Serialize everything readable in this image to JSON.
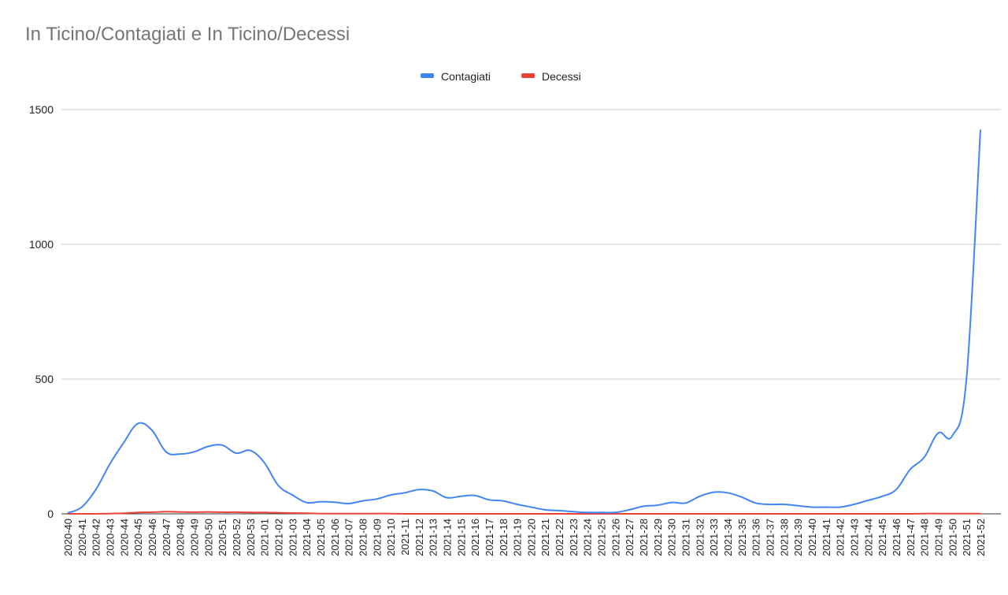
{
  "chart_data": {
    "type": "line",
    "title": "In Ticino/Contagiati e In Ticino/Decessi",
    "xlabel": "",
    "ylabel": "",
    "ylim": [
      0,
      1500
    ],
    "yticks": [
      0,
      500,
      1000,
      1500
    ],
    "legend_position": "top-center",
    "grid": true,
    "categories": [
      "2020-40",
      "2020-41",
      "2020-42",
      "2020-43",
      "2020-44",
      "2020-45",
      "2020-46",
      "2020-47",
      "2020-48",
      "2020-49",
      "2020-50",
      "2020-51",
      "2020-52",
      "2020-53",
      "2021-01",
      "2021-02",
      "2021-03",
      "2021-04",
      "2021-05",
      "2021-06",
      "2021-07",
      "2021-08",
      "2021-09",
      "2021-10",
      "2021-11",
      "2021-12",
      "2021-13",
      "2021-14",
      "2021-15",
      "2021-16",
      "2021-17",
      "2021-18",
      "2021-19",
      "2021-20",
      "2021-21",
      "2021-22",
      "2021-23",
      "2021-24",
      "2021-25",
      "2021-26",
      "2021-27",
      "2021-28",
      "2021-29",
      "2021-30",
      "2021-31",
      "2021-32",
      "2021-33",
      "2021-34",
      "2021-35",
      "2021-36",
      "2021-37",
      "2021-38",
      "2021-39",
      "2021-40",
      "2021-41",
      "2021-42",
      "2021-43",
      "2021-44",
      "2021-45",
      "2021-46",
      "2021-47",
      "2021-48",
      "2021-49",
      "2021-50",
      "2021-51",
      "2021-52"
    ],
    "series": [
      {
        "name": "Contagiati",
        "color": "#4285f4",
        "values": [
          3,
          25,
          90,
          185,
          265,
          335,
          310,
          230,
          222,
          230,
          250,
          255,
          225,
          235,
          190,
          105,
          70,
          42,
          45,
          43,
          38,
          48,
          55,
          70,
          78,
          90,
          85,
          60,
          65,
          68,
          52,
          48,
          35,
          25,
          15,
          12,
          8,
          5,
          5,
          5,
          15,
          28,
          32,
          42,
          40,
          65,
          80,
          78,
          62,
          40,
          35,
          35,
          30,
          25,
          25,
          25,
          35,
          50,
          65,
          90,
          165,
          210,
          300,
          290,
          500,
          1425
        ]
      },
      {
        "name": "Decessi",
        "color": "#ea4335",
        "values": [
          0,
          0,
          0,
          1,
          2,
          5,
          6,
          8,
          7,
          6,
          7,
          6,
          6,
          5,
          5,
          4,
          3,
          2,
          1,
          1,
          1,
          1,
          1,
          1,
          0,
          0,
          0,
          0,
          0,
          0,
          0,
          0,
          0,
          0,
          0,
          0,
          0,
          0,
          0,
          0,
          0,
          0,
          0,
          0,
          0,
          0,
          0,
          0,
          0,
          0,
          0,
          0,
          0,
          0,
          0,
          0,
          0,
          0,
          0,
          0,
          0,
          1,
          1,
          1,
          1,
          1
        ]
      }
    ]
  }
}
